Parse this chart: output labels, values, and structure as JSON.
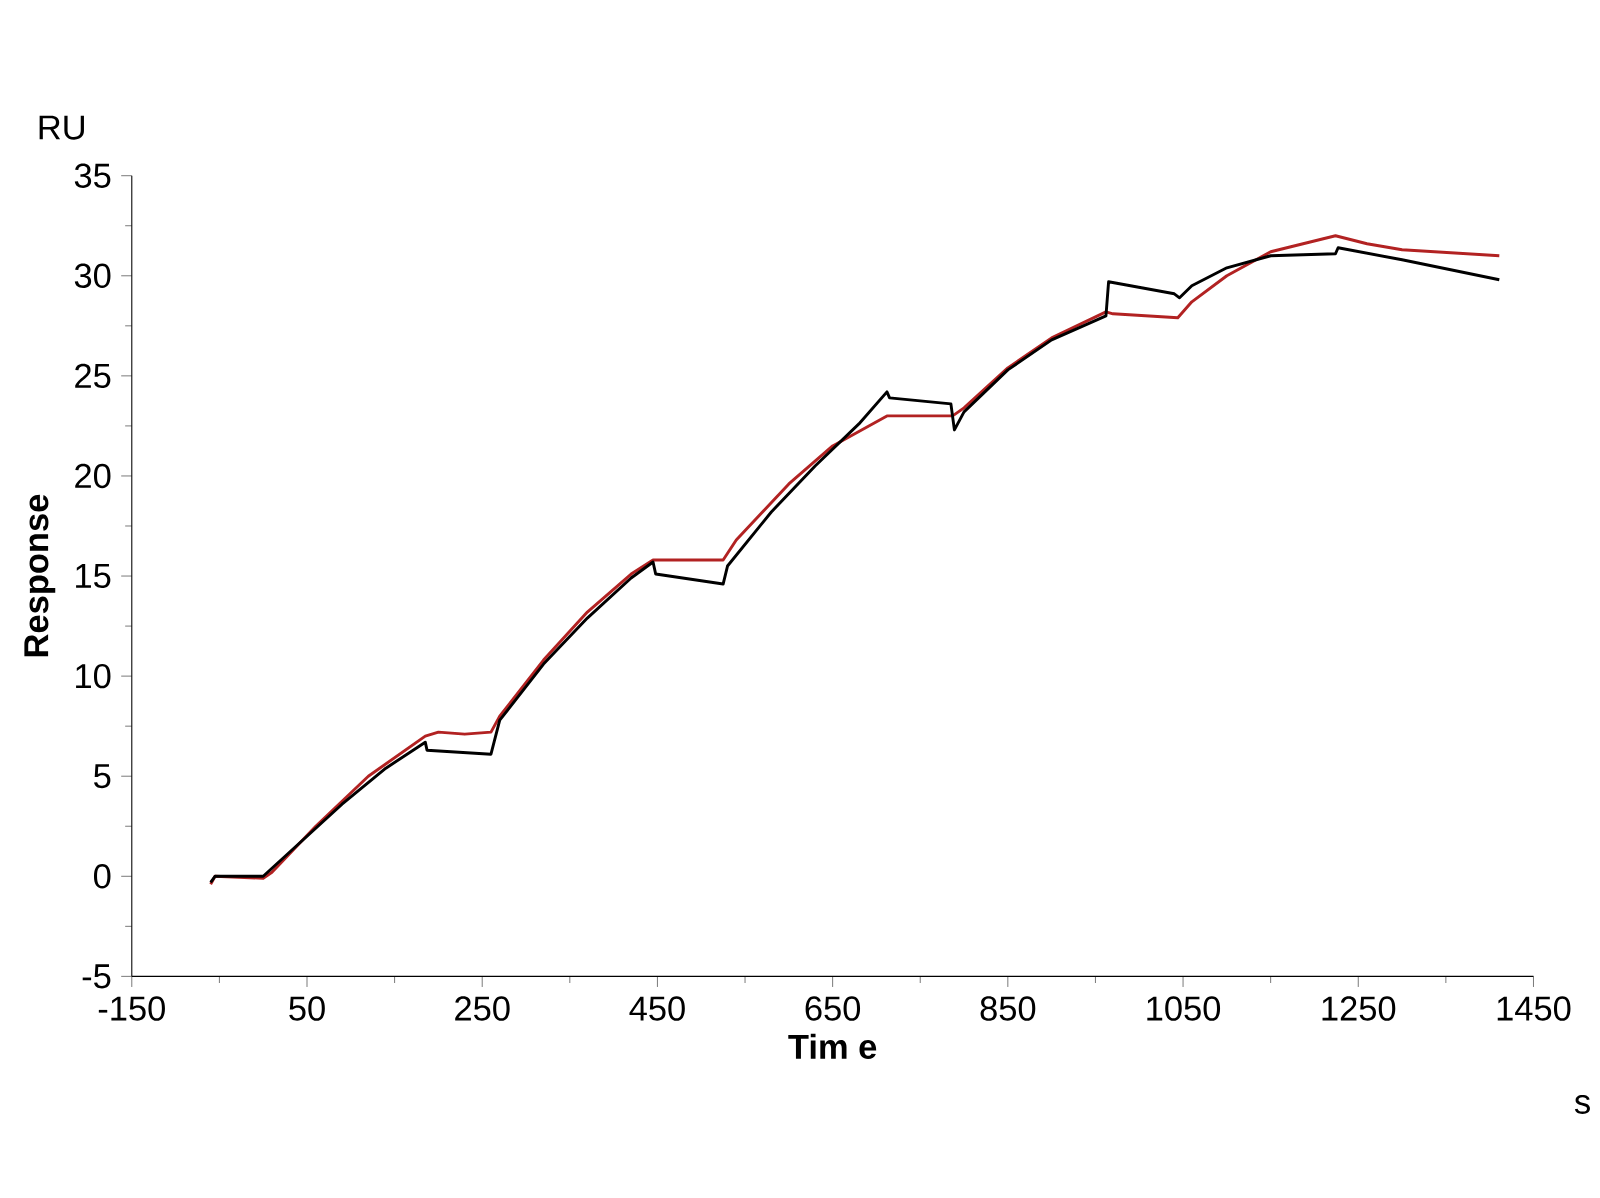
{
  "chart_data": {
    "type": "line",
    "xlabel": "Tim e",
    "ylabel": "Response",
    "annotations": [
      "RU",
      "s"
    ],
    "xlim": [
      -150,
      1450
    ],
    "ylim": [
      -5,
      35
    ],
    "xticks": [
      -150,
      50,
      250,
      450,
      650,
      850,
      1050,
      1250,
      1450
    ],
    "yticks": [
      -5,
      0,
      5,
      10,
      15,
      20,
      25,
      30,
      35
    ],
    "grid": false,
    "marker": "none",
    "line_style": "solid",
    "series": [
      {
        "color": "#b22222",
        "x": [
          -60,
          -55,
          0,
          10,
          60,
          120,
          185,
          200,
          230,
          260,
          270,
          320,
          370,
          420,
          445,
          460,
          525,
          540,
          600,
          650,
          712,
          787,
          800,
          850,
          900,
          962,
          970,
          1044,
          1060,
          1100,
          1150,
          1224,
          1260,
          1300,
          1411
        ],
        "values": [
          -0.4,
          0,
          -0.1,
          0.2,
          2.5,
          5.0,
          7.0,
          7.2,
          7.1,
          7.2,
          8.0,
          10.8,
          13.2,
          15.1,
          15.8,
          15.8,
          15.8,
          16.8,
          19.6,
          21.5,
          23.0,
          23.0,
          23.4,
          25.4,
          26.9,
          28.2,
          28.1,
          27.9,
          28.7,
          30.0,
          31.2,
          32.0,
          31.6,
          31.3,
          31.0
        ]
      },
      {
        "color": "#000000",
        "x": [
          -60,
          -55,
          0,
          90,
          140,
          185,
          187,
          260,
          270,
          320,
          370,
          420,
          445,
          448,
          525,
          530,
          580,
          630,
          680,
          712,
          715,
          785,
          789,
          800,
          850,
          900,
          962,
          965,
          1040,
          1046,
          1060,
          1100,
          1150,
          1224,
          1227,
          1300,
          1411
        ],
        "values": [
          -0.3,
          0,
          0,
          3.6,
          5.4,
          6.7,
          6.3,
          6.1,
          7.8,
          10.6,
          12.9,
          14.9,
          15.7,
          15.1,
          14.6,
          15.5,
          18.2,
          20.5,
          22.6,
          24.2,
          23.9,
          23.6,
          22.3,
          23.2,
          25.3,
          26.8,
          28.0,
          29.7,
          29.1,
          28.9,
          29.5,
          30.4,
          31.0,
          31.1,
          31.4,
          30.8,
          29.8
        ]
      }
    ]
  }
}
